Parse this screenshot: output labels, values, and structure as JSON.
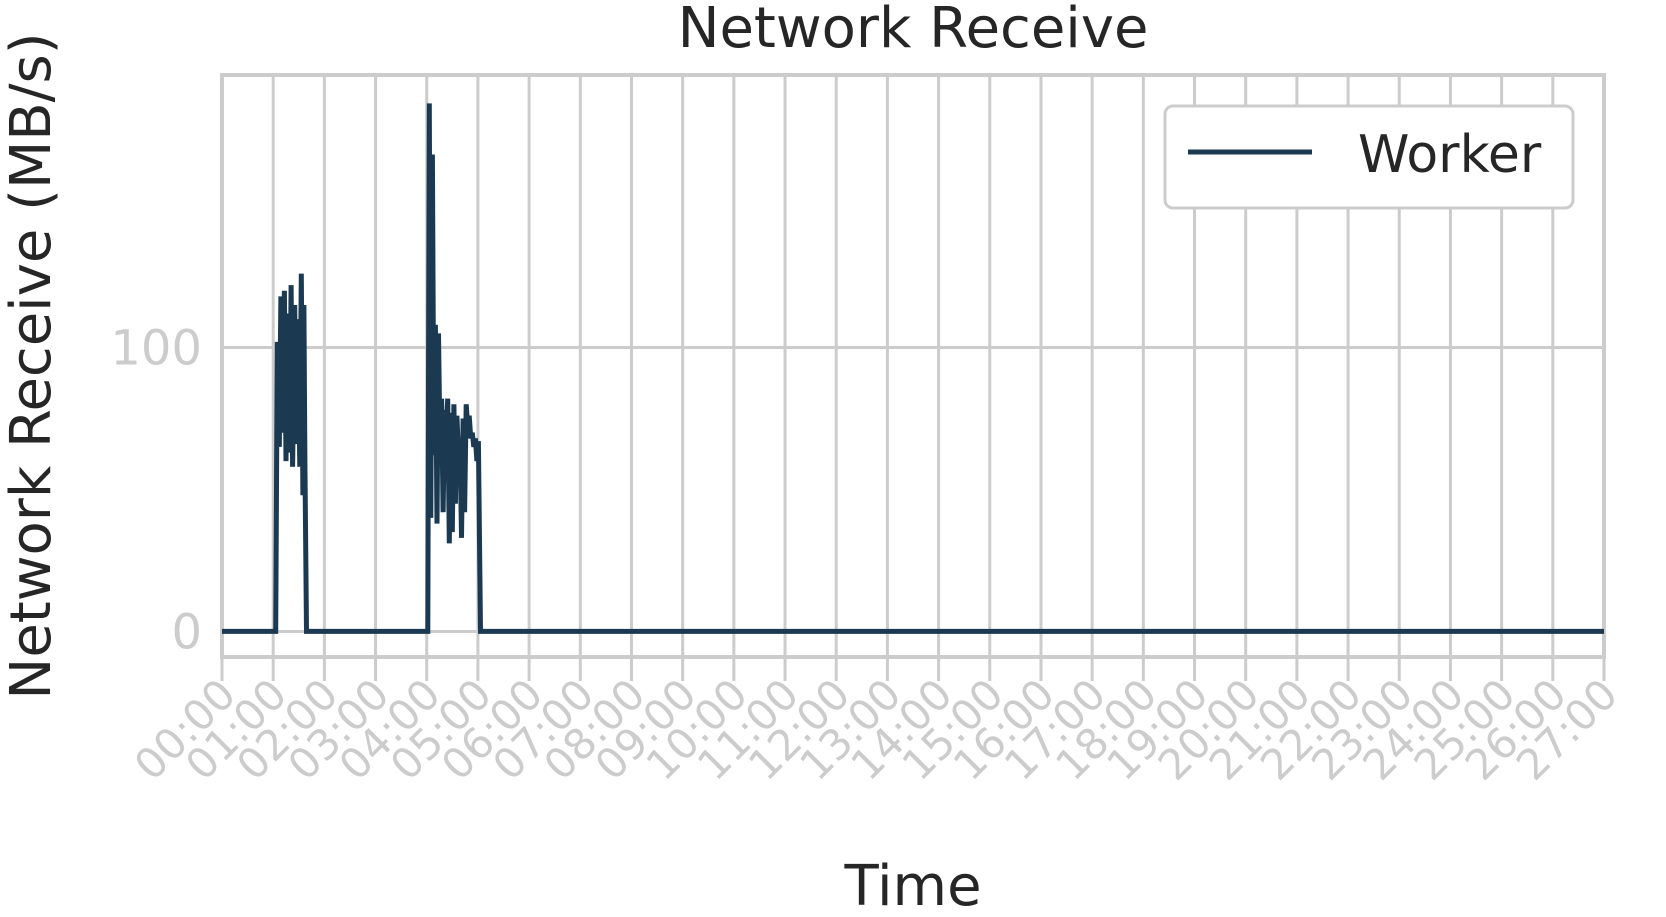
{
  "chart_data": {
    "type": "line",
    "title": "Network Receive",
    "xlabel": "Time",
    "ylabel": "Network Receive (MB/s)",
    "x_ticks": [
      "00:00",
      "01:00",
      "02:00",
      "03:00",
      "04:00",
      "05:00",
      "06:00",
      "07:00",
      "08:00",
      "09:00",
      "10:00",
      "11:00",
      "12:00",
      "13:00",
      "14:00",
      "15:00",
      "16:00",
      "17:00",
      "18:00",
      "19:00",
      "20:00",
      "21:00",
      "22:00",
      "23:00",
      "24:00",
      "25:00",
      "26:00",
      "27:00"
    ],
    "x_unit": "minutes",
    "xlim": [
      0,
      27
    ],
    "y_ticks": [
      0,
      100
    ],
    "ylim": [
      -9,
      196
    ],
    "grid": true,
    "legend_position": "top-right",
    "colors": {
      "line": "#1b3a52",
      "grid": "#cccccc",
      "tick_text": "#cccccc"
    },
    "series": [
      {
        "name": "Worker",
        "x": [
          0,
          1.05,
          1.08,
          1.12,
          1.15,
          1.18,
          1.22,
          1.25,
          1.28,
          1.32,
          1.35,
          1.38,
          1.42,
          1.45,
          1.48,
          1.52,
          1.55,
          1.58,
          1.6,
          1.62,
          1.65,
          1.68,
          4.02,
          4.05,
          4.08,
          4.11,
          4.14,
          4.17,
          4.2,
          4.23,
          4.26,
          4.29,
          4.32,
          4.35,
          4.38,
          4.41,
          4.44,
          4.47,
          4.5,
          4.53,
          4.56,
          4.59,
          4.62,
          4.65,
          4.68,
          4.71,
          4.74,
          4.77,
          4.8,
          4.83,
          4.86,
          4.89,
          4.92,
          4.95,
          4.98,
          5.01,
          5.05,
          27
        ],
        "y": [
          0,
          0,
          102,
          65,
          118,
          70,
          120,
          60,
          112,
          63,
          122,
          58,
          115,
          66,
          110,
          58,
          126,
          48,
          115,
          60,
          0,
          0,
          0,
          186,
          40,
          168,
          62,
          108,
          38,
          105,
          65,
          82,
          42,
          78,
          70,
          82,
          31,
          77,
          35,
          80,
          45,
          76,
          62,
          68,
          33,
          75,
          42,
          80,
          72,
          76,
          68,
          70,
          65,
          68,
          60,
          67,
          0,
          0
        ]
      }
    ]
  }
}
